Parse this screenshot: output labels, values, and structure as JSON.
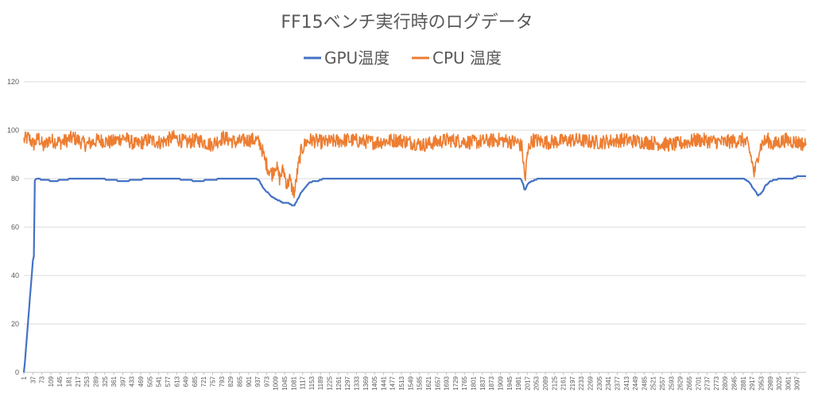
{
  "chart_data": {
    "type": "line",
    "title": "FF15ベンチ実行時のログデータ",
    "xlabel": "",
    "ylabel": "",
    "ylim": [
      0,
      120
    ],
    "yticks": [
      0,
      20,
      40,
      60,
      80,
      100,
      120
    ],
    "xlim": [
      1,
      3133
    ],
    "xticks": [
      1,
      37,
      73,
      109,
      145,
      181,
      217,
      253,
      289,
      325,
      361,
      397,
      433,
      469,
      505,
      541,
      577,
      613,
      649,
      685,
      721,
      757,
      793,
      829,
      865,
      901,
      937,
      973,
      1009,
      1045,
      1081,
      1117,
      1153,
      1189,
      1225,
      1261,
      1297,
      1333,
      1369,
      1405,
      1441,
      1477,
      1513,
      1549,
      1585,
      1621,
      1657,
      1693,
      1729,
      1765,
      1801,
      1837,
      1873,
      1909,
      1945,
      1981,
      2017,
      2053,
      2089,
      2125,
      2161,
      2197,
      2233,
      2269,
      2305,
      2341,
      2377,
      2413,
      2449,
      2485,
      2521,
      2557,
      2593,
      2629,
      2665,
      2701,
      2737,
      2773,
      2809,
      2845,
      2881,
      2917,
      2953,
      2989,
      3025,
      3061,
      3097
    ],
    "grid": true,
    "legend_position": "top",
    "series": [
      {
        "name": "GPU温度",
        "color": "#4472C4",
        "x": [
          1,
          5,
          37,
          41,
          42,
          44,
          50,
          120,
          200,
          300,
          400,
          500,
          600,
          700,
          800,
          900,
          930,
          945,
          960,
          980,
          1000,
          1020,
          1040,
          1060,
          1075,
          1085,
          1095,
          1110,
          1125,
          1140,
          1160,
          1180,
          1200,
          1300,
          1500,
          1700,
          1900,
          1990,
          2000,
          2006,
          2012,
          2020,
          2035,
          2060,
          2200,
          2400,
          2600,
          2800,
          2880,
          2900,
          2915,
          2930,
          2940,
          2955,
          2970,
          2990,
          3030,
          3060,
          3080,
          3100,
          3133
        ],
        "values": [
          0,
          4,
          46,
          48,
          75,
          79,
          80,
          79,
          80,
          80,
          79,
          80,
          80,
          79,
          80,
          80,
          80,
          79,
          76,
          74,
          72,
          71,
          70,
          70,
          69,
          69,
          71,
          74,
          76,
          78,
          79,
          79,
          80,
          80,
          80,
          80,
          80,
          80,
          78,
          75,
          76,
          78,
          79,
          80,
          80,
          80,
          80,
          80,
          80,
          79,
          77,
          75,
          73,
          74,
          77,
          79,
          80,
          80,
          80,
          81,
          81
        ]
      },
      {
        "name": "CPU 温度",
        "color": "#ED7D31",
        "x": [
          1,
          20,
          40,
          60,
          80,
          100,
          150,
          200,
          250,
          300,
          350,
          400,
          450,
          500,
          550,
          600,
          650,
          700,
          750,
          800,
          850,
          900,
          930,
          950,
          965,
          980,
          995,
          1010,
          1025,
          1040,
          1055,
          1065,
          1075,
          1085,
          1095,
          1110,
          1130,
          1150,
          1200,
          1300,
          1400,
          1500,
          1600,
          1700,
          1800,
          1900,
          1980,
          1995,
          2003,
          2008,
          2015,
          2025,
          2040,
          2100,
          2200,
          2300,
          2400,
          2500,
          2600,
          2700,
          2800,
          2880,
          2900,
          2915,
          2925,
          2935,
          2945,
          2960,
          2980,
          3000,
          3050,
          3100,
          3133
        ],
        "values": [
          96,
          97,
          94,
          97,
          93,
          96,
          95,
          97,
          94,
          96,
          95,
          97,
          94,
          96,
          95,
          97,
          95,
          96,
          94,
          97,
          95,
          96,
          96,
          94,
          88,
          84,
          82,
          86,
          80,
          84,
          77,
          80,
          76,
          74,
          82,
          91,
          95,
          96,
          95,
          96,
          95,
          96,
          94,
          96,
          95,
          96,
          95,
          93,
          85,
          79,
          88,
          94,
          96,
          95,
          96,
          95,
          96,
          95,
          94,
          96,
          95,
          96,
          94,
          88,
          82,
          86,
          92,
          95,
          96,
          94,
          96,
          95,
          94
        ]
      }
    ]
  }
}
